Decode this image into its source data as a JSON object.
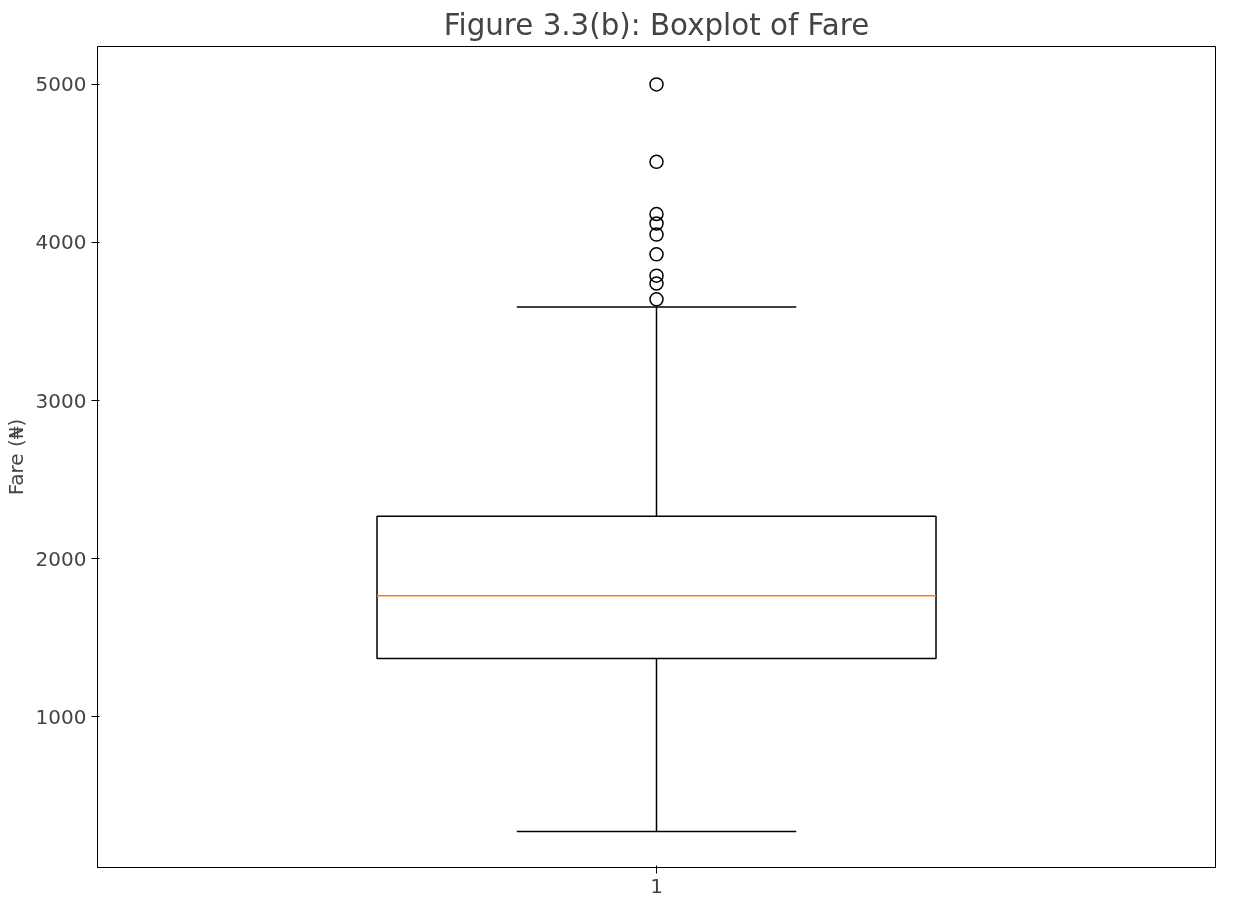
{
  "chart_data": {
    "type": "box",
    "title": "Figure 3.3(b): Boxplot of Fare",
    "ylabel": "Fare (₦)",
    "categories": [
      "1"
    ],
    "boxes": [
      {
        "low": 273,
        "q1": 1367,
        "median": 1765,
        "q3": 2267,
        "high": 3592,
        "outliers": [
          5000,
          4510,
          4180,
          4120,
          4050,
          3925,
          3790,
          3740,
          3640
        ]
      }
    ],
    "ylim": [
      45,
      5240
    ],
    "yticks": [
      1000,
      2000,
      3000,
      4000,
      5000
    ],
    "grid": false,
    "color": "#000000"
  }
}
